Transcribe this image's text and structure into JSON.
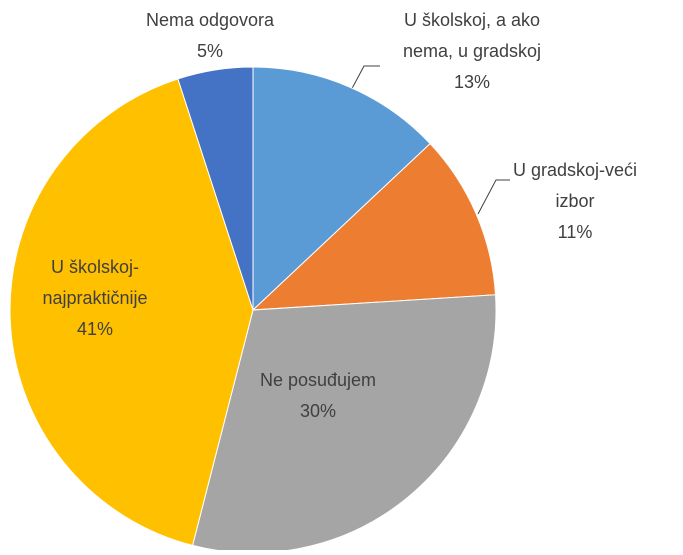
{
  "chart_data": {
    "type": "pie",
    "categories": [
      "U školskoj, a ako\nnema, u gradskoj",
      "U gradskoj-veći\nizbor",
      "Ne posuđujem",
      "U školskoj-\nnajpraktičnije",
      "Nema odgovora"
    ],
    "values": [
      13,
      11,
      30,
      41,
      5
    ],
    "value_labels": [
      "13%",
      "11%",
      "30%",
      "41%",
      "5%"
    ],
    "colors": [
      "#5b9bd5",
      "#ed7d31",
      "#a5a5a5",
      "#ffc000",
      "#4472c4"
    ]
  }
}
